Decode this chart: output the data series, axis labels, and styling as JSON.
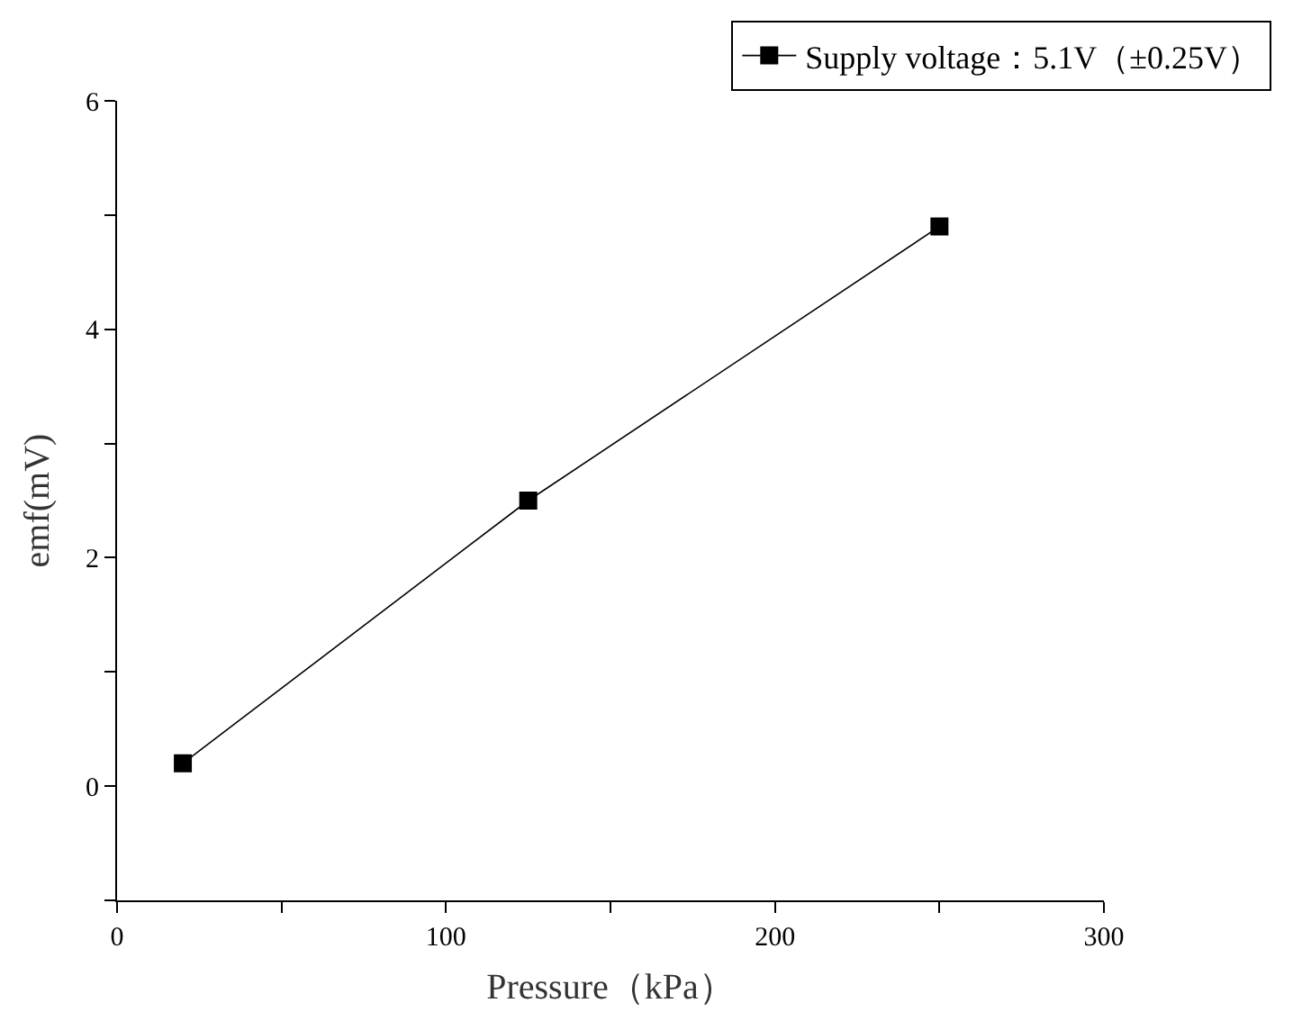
{
  "chart_data": {
    "type": "line",
    "xlabel": "Pressure（kPa）",
    "ylabel": "emf(mV)",
    "x": [
      20,
      125,
      250
    ],
    "series": [
      {
        "name": "Supply voltage：5.1V（±0.25V）",
        "color": "#000000",
        "values": [
          0.2,
          2.5,
          4.9
        ]
      }
    ],
    "xlim": [
      0,
      300
    ],
    "xticks": [
      0,
      {
        "value": 50,
        "label": null
      },
      100,
      {
        "value": 150,
        "label": null
      },
      200,
      {
        "value": 250,
        "label": null
      },
      300
    ],
    "ylim": [
      -1,
      6
    ],
    "yticks": [
      {
        "value": -1,
        "label": null
      },
      0,
      {
        "value": 1,
        "label": null
      },
      2,
      {
        "value": 3,
        "label": null
      },
      4,
      {
        "value": 5,
        "label": null
      },
      6
    ],
    "legend": "top right",
    "marker": "square",
    "line_style": "solid"
  }
}
